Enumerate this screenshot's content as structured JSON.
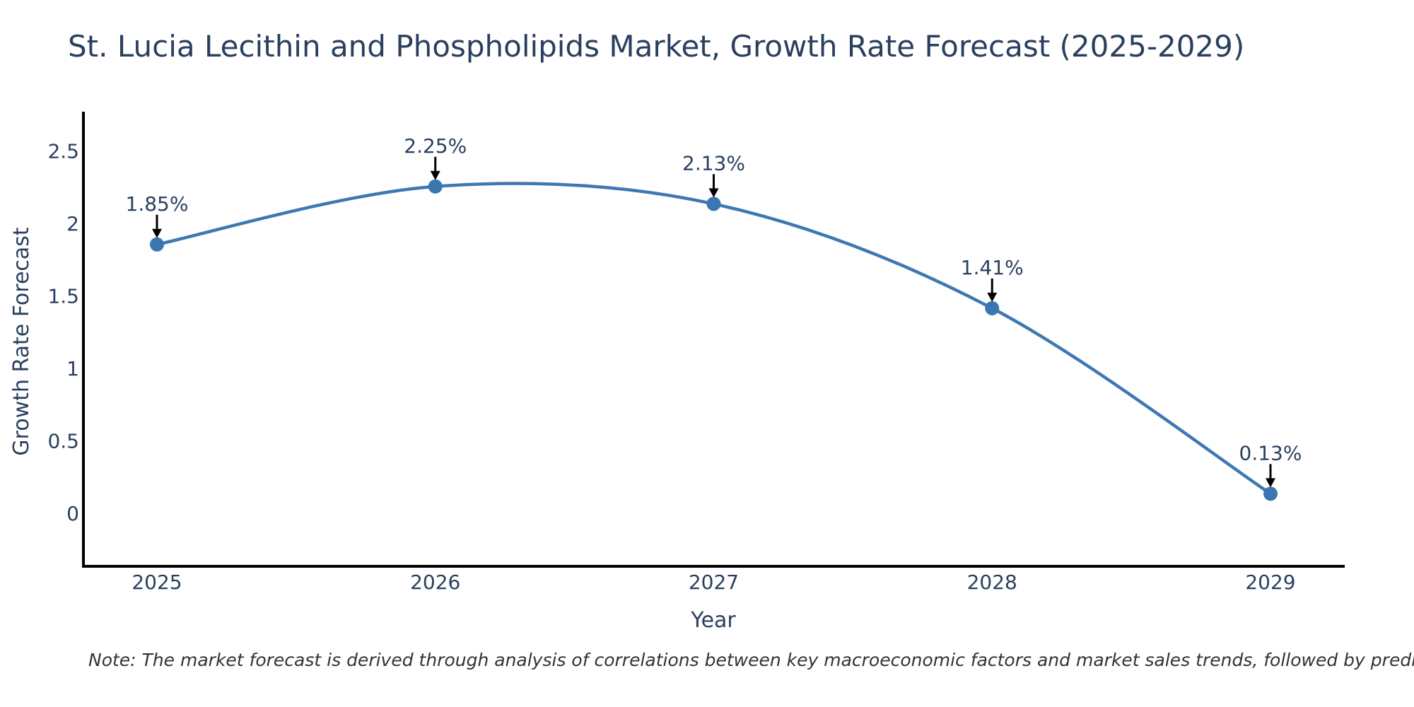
{
  "title": "St. Lucia Lecithin and Phospholipids Market, Growth Rate Forecast (2025-2029)",
  "note": "Note: The market forecast is derived through analysis of correlations between key macroeconomic factors and market sales trends, followed by predictive modeling to project future sales",
  "colors": {
    "line": "#3e78b2",
    "marker": "#3a76b0",
    "text": "#2a3f5f",
    "axis_line": "#000000",
    "arrow": "#000000",
    "note_text": "#333333",
    "background": "#ffffff"
  },
  "chart_data": {
    "type": "line",
    "line_shape": "spline",
    "title": "St. Lucia Lecithin and Phospholipids Market, Growth Rate Forecast (2025-2029)",
    "categories": [
      "2025",
      "2026",
      "2027",
      "2028",
      "2029"
    ],
    "values": [
      1.85,
      2.25,
      2.13,
      1.41,
      0.13
    ],
    "point_labels": [
      "1.85%",
      "2.25%",
      "2.13%",
      "1.41%",
      "0.13%"
    ],
    "xlabel": "Year",
    "ylabel": "Growth Rate Forecast",
    "xticks": [
      "2025",
      "2026",
      "2027",
      "2028",
      "2029"
    ],
    "yticks": [
      "0",
      "0.5",
      "1",
      "1.5",
      "2",
      "2.5"
    ],
    "ytick_values": [
      0,
      0.5,
      1,
      1.5,
      2,
      2.5
    ],
    "ylim": [
      -0.38,
      2.77
    ],
    "grid": false,
    "legend": "none",
    "markers": true,
    "annotation_arrows": "down"
  }
}
